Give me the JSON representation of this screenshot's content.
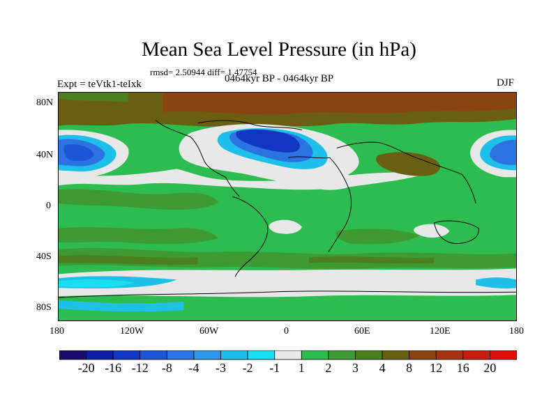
{
  "title": "Mean Sea Level Pressure (in hPa)",
  "stats": "rmsd= 2.50944 diff= 1.47754",
  "experiment": "Expt = teVtk1-teIxk",
  "period": "0464kyr BP - 0464kyr BP",
  "season": "DJF",
  "lat_labels": [
    "80N",
    "40N",
    "0",
    "40S",
    "80S"
  ],
  "lon_labels": [
    "180",
    "120W",
    "60W",
    "0",
    "60E",
    "120E",
    "180"
  ],
  "colorbar": {
    "labels": [
      "-20",
      "-16",
      "-12",
      "-8",
      "-4",
      "-3",
      "-2",
      "-1",
      "1",
      "2",
      "3",
      "4",
      "8",
      "12",
      "16",
      "20"
    ],
    "colors": [
      "#1a0a6b",
      "#0b1fa0",
      "#1236c1",
      "#1c55d6",
      "#2a73e0",
      "#2f96ea",
      "#1ebfe8",
      "#19dff0",
      "#e8e8e8",
      "#2dbc4f",
      "#3e9b33",
      "#4a7e1e",
      "#6a5e12",
      "#8a4410",
      "#a63412",
      "#c81e12",
      "#e00c0c"
    ]
  }
}
